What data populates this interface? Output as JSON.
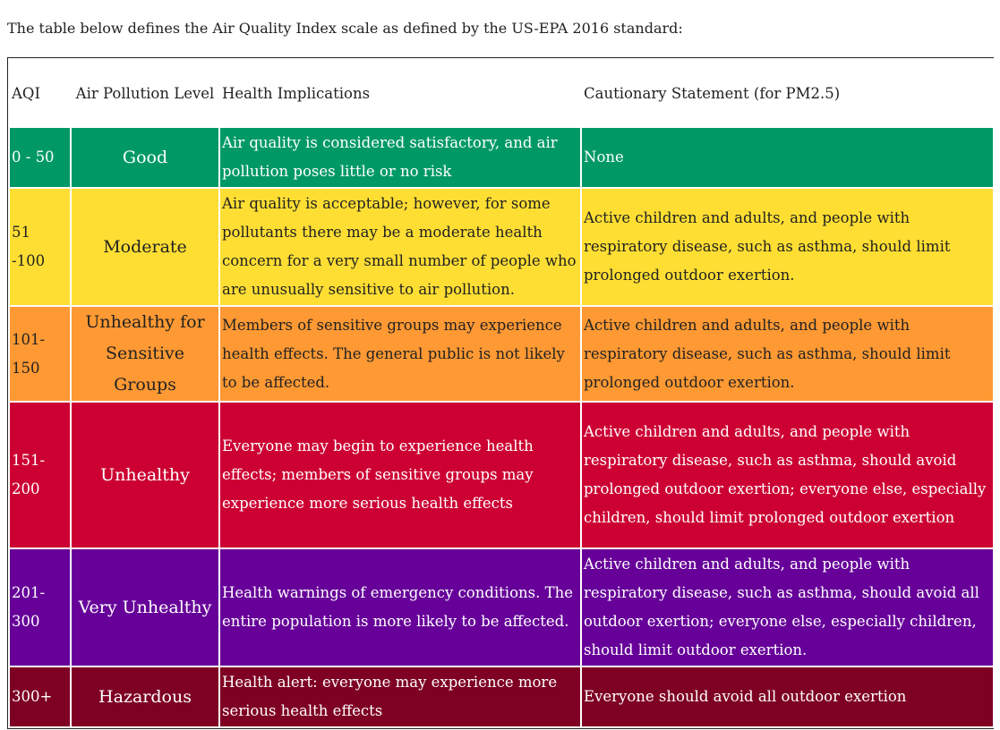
{
  "intro": "The table below defines the Air Quality Index scale as defined by the US-EPA 2016 standard:",
  "headers": {
    "aqi": "AQI",
    "level": "Air Pollution Level",
    "health": "Health Implications",
    "caution": "Cautionary Statement (for PM2.5)"
  },
  "rows": [
    {
      "aqi": "0 - 50",
      "level": "Good",
      "health": "Air quality is considered satisfactory, and air pollution poses little or no risk",
      "caution": "None",
      "bg": "#009966",
      "fg": "#ffffff"
    },
    {
      "aqi": "51 -100",
      "level": "Moderate",
      "health": "Air quality is acceptable; however, for some pollutants there may be a moderate health concern for a very small number of people who are unusually sensitive to air pollution.",
      "caution": "Active children and adults, and people with respiratory disease, such as asthma, should limit prolonged outdoor exertion.",
      "bg": "#FFDE33",
      "fg": "#222222"
    },
    {
      "aqi": "101-150",
      "level": "Unhealthy for Sensitive Groups",
      "health": "Members of sensitive groups may experience health effects. The general public is not likely to be affected.",
      "caution": "Active children and adults, and people with respiratory disease, such as asthma, should limit prolonged outdoor exertion.",
      "bg": "#FF9933",
      "fg": "#222222"
    },
    {
      "aqi": "151-200",
      "level": "Unhealthy",
      "health": "Everyone may begin to experience health effects; members of sensitive groups may experience more serious health effects",
      "caution": "Active children and adults, and people with respiratory disease, such as asthma, should avoid prolonged outdoor exertion; everyone else, especially children, should limit prolonged outdoor exertion",
      "bg": "#CC0033",
      "fg": "#ffffff"
    },
    {
      "aqi": "201-300",
      "level": "Very Unhealthy",
      "health": "Health warnings of emergency conditions. The entire population is more likely to be affected.",
      "caution": "Active children and adults, and people with respiratory disease, such as asthma, should avoid all outdoor exertion; everyone else, especially children, should limit outdoor exertion.",
      "bg": "#660099",
      "fg": "#ffffff"
    },
    {
      "aqi": "300+",
      "level": "Hazardous",
      "health": "Health alert: everyone may experience more serious health effects",
      "caution": "Everyone should avoid all outdoor exertion",
      "bg": "#7E0023",
      "fg": "#ffffff"
    }
  ]
}
